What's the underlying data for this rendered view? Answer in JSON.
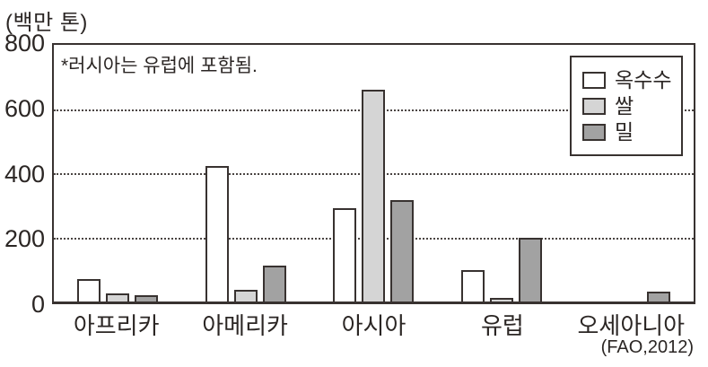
{
  "unit_label": "(백만 톤)",
  "annotation": "*러시아는 유럽에 포함됨.",
  "source": "(FAO,2012)",
  "ink_color": "#383230",
  "chart_data": {
    "type": "bar",
    "title": "",
    "unit_label": "(백만 톤)",
    "categories": [
      "아프리카",
      "아메리카",
      "아시아",
      "유럽",
      "오세아니아"
    ],
    "series": [
      {
        "name": "옥수수",
        "slug": "corn",
        "color": "#ffffff",
        "values": [
          70,
          415,
          285,
          95,
          0
        ]
      },
      {
        "name": "쌀",
        "slug": "rice",
        "color": "#d5d5d5",
        "values": [
          25,
          35,
          650,
          5,
          0
        ]
      },
      {
        "name": "밀",
        "slug": "wheat",
        "color": "#a2a2a2",
        "values": [
          20,
          110,
          310,
          195,
          30
        ]
      }
    ],
    "ylim": [
      0,
      800
    ],
    "yticks": [
      0,
      200,
      400,
      600,
      800
    ],
    "gridlines": [
      200,
      400,
      600
    ],
    "grid_style": "dotted",
    "legend_position": "top-right",
    "annotation": "*러시아는 유럽에 포함됨.",
    "source": "(FAO,2012)"
  }
}
